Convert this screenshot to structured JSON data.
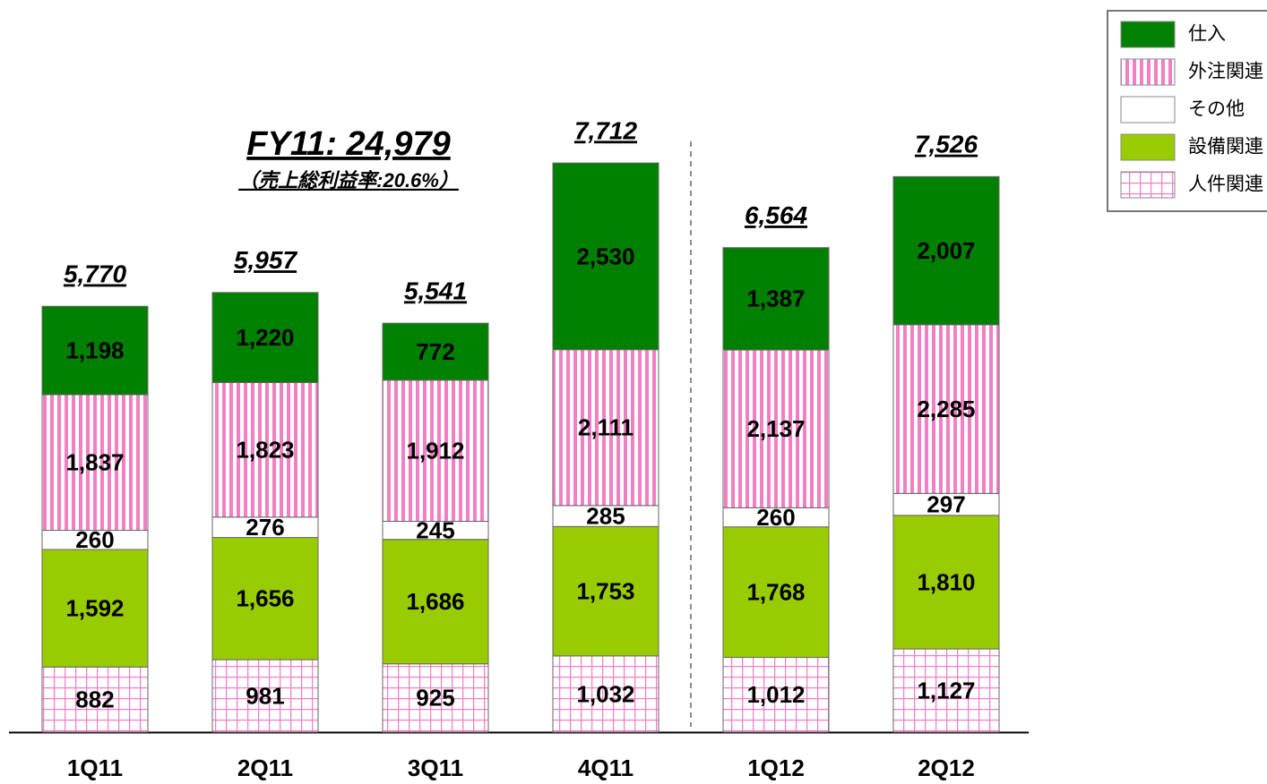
{
  "chart_data": {
    "type": "stacked_bar",
    "categories": [
      "1Q11",
      "2Q11",
      "3Q11",
      "4Q11",
      "1Q12",
      "2Q12"
    ],
    "series": [
      {
        "name": "人件関連",
        "color": "#f27fc4",
        "pattern": "grid",
        "values": [
          882,
          981,
          925,
          1032,
          1012,
          1127
        ],
        "value_labels": [
          "882",
          "981",
          "925",
          "1,032",
          "1,012",
          "1,127"
        ]
      },
      {
        "name": "設備関連",
        "color": "#99cc00",
        "values": [
          1592,
          1656,
          1686,
          1753,
          1768,
          1810
        ],
        "value_labels": [
          "1,592",
          "1,656",
          "1,686",
          "1,753",
          "1,768",
          "1,810"
        ]
      },
      {
        "name": "その他",
        "color": "#ffffff",
        "values": [
          260,
          276,
          245,
          285,
          260,
          297
        ],
        "value_labels": [
          "260",
          "276",
          "245",
          "285",
          "260",
          "297"
        ]
      },
      {
        "name": "外注関連",
        "color": "#f27fc4",
        "pattern": "stripes",
        "values": [
          1837,
          1823,
          1912,
          2111,
          2137,
          2285
        ],
        "value_labels": [
          "1,837",
          "1,823",
          "1,912",
          "2,111",
          "2,137",
          "2,285"
        ]
      },
      {
        "name": "仕入",
        "color": "#008000",
        "values": [
          1198,
          1220,
          772,
          2530,
          1387,
          2007
        ],
        "value_labels": [
          "1,198",
          "1,220",
          "772",
          "2,530",
          "1,387",
          "2,007"
        ]
      }
    ],
    "totals": [
      5770,
      5957,
      5541,
      7712,
      6564,
      7526
    ],
    "total_labels": [
      "5,770",
      "5,957",
      "5,541",
      "7,712",
      "6,564",
      "7,526"
    ],
    "annotations": [
      "FY11: 24,979",
      "（売上総利益率:20.6%）"
    ],
    "legend": "top-right"
  }
}
